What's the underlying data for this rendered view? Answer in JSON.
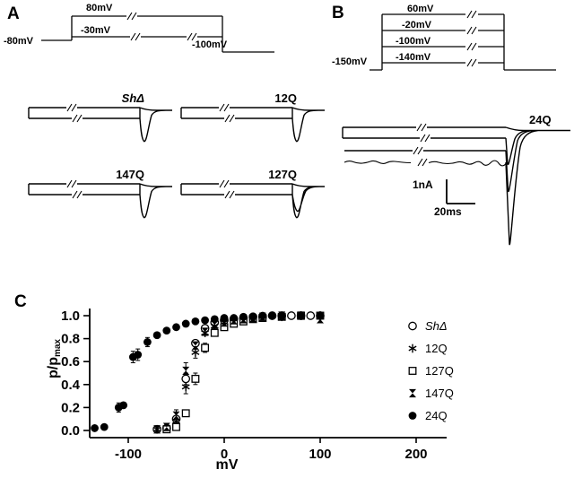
{
  "figure": {
    "panel_a": {
      "label": "A",
      "protocol": {
        "pulse_top": "80mV",
        "pulse_mid": "-30mV",
        "holding": "-80mV",
        "tail": "-100mV"
      },
      "traces": [
        {
          "label": "ShΔ"
        },
        {
          "label": "12Q"
        },
        {
          "label": "147Q"
        },
        {
          "label": "127Q"
        }
      ]
    },
    "panel_b": {
      "label": "B",
      "protocol": {
        "levels": [
          "60mV",
          "-20mV",
          "-100mV",
          "-140mV"
        ],
        "holding": "-150mV"
      },
      "trace_label": "24Q",
      "scalebar": {
        "current": "1nA",
        "time": "20ms"
      }
    },
    "panel_c": {
      "label": "C",
      "y_axis_title": "p/p",
      "y_axis_title_sub": "max"
    }
  },
  "chart_data": {
    "type": "scatter",
    "title": "",
    "xlabel": "mV",
    "ylabel": "p/pmax",
    "xlim": [
      -160,
      215
    ],
    "ylim": [
      -0.04,
      1.06
    ],
    "xticks": [
      -100,
      0,
      100,
      200
    ],
    "yticks": [
      0,
      0.2,
      0.4,
      0.6,
      0.8,
      1
    ],
    "grid": false,
    "legend_position": "right",
    "series": [
      {
        "name": "ShΔ",
        "marker": "circle-open",
        "italic_label": true,
        "x": [
          -70,
          -60,
          -50,
          -40,
          -30,
          -20,
          -10,
          0,
          10,
          20,
          30,
          40,
          50,
          60,
          70,
          80,
          90,
          100
        ],
        "y": [
          0.01,
          0.02,
          0.1,
          0.45,
          0.76,
          0.89,
          0.94,
          0.96,
          0.97,
          0.98,
          0.99,
          0.99,
          1.0,
          1.0,
          1.0,
          1.0,
          1.0,
          1.0
        ],
        "errors": [
          {
            "x": -40,
            "e": 0.05
          }
        ]
      },
      {
        "name": "12Q",
        "marker": "asterisk",
        "x": [
          -70,
          -60,
          -50,
          -40,
          -30,
          -20,
          -10,
          0,
          10,
          20,
          30,
          40,
          60,
          80,
          100
        ],
        "y": [
          0.01,
          0.02,
          0.08,
          0.38,
          0.68,
          0.85,
          0.91,
          0.94,
          0.96,
          0.97,
          0.98,
          0.99,
          0.99,
          1.0,
          1.0
        ],
        "errors": [
          {
            "x": -40,
            "e": 0.06
          },
          {
            "x": -30,
            "e": 0.05
          }
        ]
      },
      {
        "name": "127Q",
        "marker": "square-open",
        "x": [
          -60,
          -50,
          -40,
          -30,
          -20,
          -10,
          0,
          10,
          20,
          30,
          40,
          60,
          80,
          100
        ],
        "y": [
          0.01,
          0.03,
          0.15,
          0.45,
          0.72,
          0.85,
          0.9,
          0.93,
          0.95,
          0.97,
          0.98,
          0.99,
          1.0,
          1.0
        ],
        "errors": [
          {
            "x": -30,
            "e": 0.05
          },
          {
            "x": -20,
            "e": 0.04
          }
        ]
      },
      {
        "name": "147Q",
        "marker": "bowtie-filled",
        "x": [
          -70,
          -60,
          -50,
          -40,
          -30,
          -20,
          -10,
          0,
          10,
          20,
          30,
          40,
          60,
          80,
          100
        ],
        "y": [
          0.01,
          0.03,
          0.13,
          0.52,
          0.74,
          0.86,
          0.92,
          0.94,
          0.96,
          0.97,
          0.98,
          0.99,
          1.0,
          1.0,
          0.97
        ],
        "errors": [
          {
            "x": -50,
            "e": 0.05
          },
          {
            "x": -40,
            "e": 0.07
          }
        ]
      },
      {
        "name": "24Q",
        "marker": "circle-filled",
        "x": [
          -135,
          -125,
          -110,
          -105,
          -95,
          -90,
          -80,
          -70,
          -60,
          -50,
          -40,
          -30,
          -20,
          -10,
          0,
          10,
          20,
          30,
          40,
          50,
          60,
          80,
          100
        ],
        "y": [
          0.02,
          0.03,
          0.2,
          0.22,
          0.64,
          0.66,
          0.77,
          0.83,
          0.87,
          0.9,
          0.93,
          0.95,
          0.96,
          0.97,
          0.98,
          0.98,
          0.99,
          0.99,
          1.0,
          1.0,
          1.0,
          1.0,
          1.0
        ],
        "errors": [
          {
            "x": -110,
            "e": 0.04
          },
          {
            "x": -95,
            "e": 0.05
          },
          {
            "x": -90,
            "e": 0.05
          },
          {
            "x": -80,
            "e": 0.04
          }
        ]
      }
    ]
  }
}
